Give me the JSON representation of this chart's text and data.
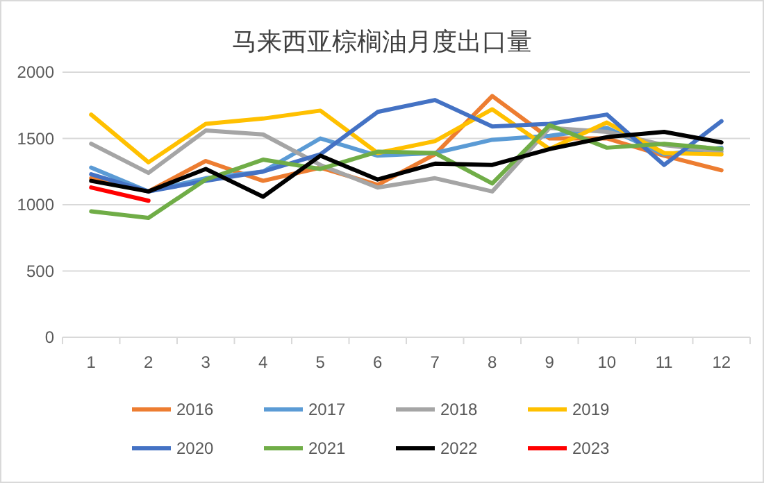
{
  "chart_data": {
    "type": "line",
    "title": "马来西亚棕榈油月度出口量",
    "categories": [
      "1",
      "2",
      "3",
      "4",
      "5",
      "6",
      "7",
      "8",
      "9",
      "10",
      "11",
      "12"
    ],
    "ylim": [
      0,
      2000
    ],
    "yticks": [
      0,
      500,
      1000,
      1500,
      2000
    ],
    "grid": "y",
    "legend": "bottom",
    "marker": "none",
    "line_style": "solid",
    "series": [
      {
        "name": "2016",
        "color": "#ed7d31",
        "values": [
          1200,
          1100,
          1330,
          1180,
          1280,
          1150,
          1380,
          1820,
          1500,
          1500,
          1370,
          1260
        ]
      },
      {
        "name": "2017",
        "color": "#5b9bd5",
        "values": [
          1280,
          1100,
          1200,
          1250,
          1500,
          1370,
          1390,
          1490,
          1520,
          1580,
          1380,
          1430
        ]
      },
      {
        "name": "2018",
        "color": "#a5a5a5",
        "values": [
          1460,
          1240,
          1560,
          1530,
          1300,
          1130,
          1200,
          1100,
          1580,
          1550,
          1450,
          1400
        ]
      },
      {
        "name": "2019",
        "color": "#ffc000",
        "values": [
          1680,
          1320,
          1610,
          1650,
          1710,
          1390,
          1480,
          1720,
          1420,
          1620,
          1390,
          1380
        ]
      },
      {
        "name": "2020",
        "color": "#4472c4",
        "values": [
          1230,
          1100,
          1180,
          1250,
          1380,
          1700,
          1790,
          1590,
          1610,
          1680,
          1300,
          1630
        ]
      },
      {
        "name": "2021",
        "color": "#70ad47",
        "values": [
          950,
          900,
          1190,
          1340,
          1270,
          1400,
          1390,
          1160,
          1600,
          1430,
          1460,
          1420
        ]
      },
      {
        "name": "2022",
        "color": "#000000",
        "values": [
          1180,
          1100,
          1270,
          1060,
          1370,
          1190,
          1310,
          1300,
          1420,
          1510,
          1550,
          1470
        ]
      },
      {
        "name": "2023",
        "color": "#ff0000",
        "values": [
          1130,
          1030,
          null,
          null,
          null,
          null,
          null,
          null,
          null,
          null,
          null,
          null
        ]
      }
    ]
  }
}
